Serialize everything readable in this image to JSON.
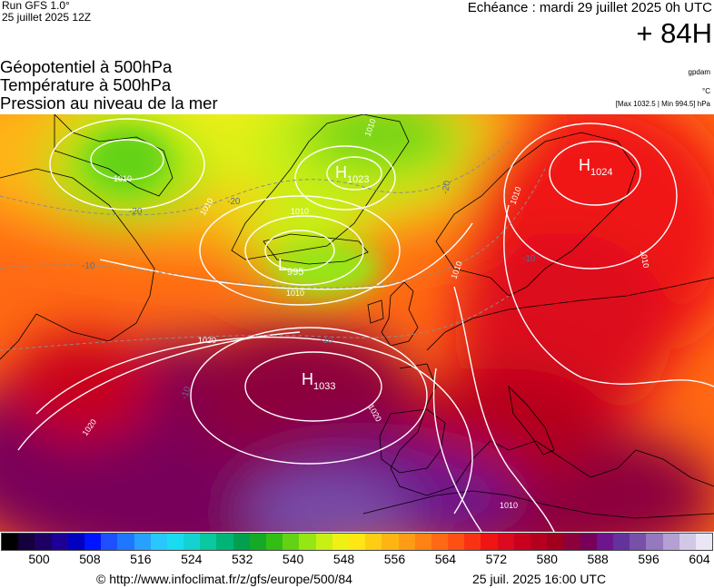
{
  "header": {
    "run_model": "Run GFS 1.0°",
    "run_date": "25 juillet 2025 12Z",
    "valid_time": "Echéance : mardi 29 juillet 2025 0h UTC",
    "lead_time": "+ 84H"
  },
  "fields": {
    "line1": "Géopotentiel à 500hPa",
    "line2": "Température à 500hPa",
    "line3": "Pression au niveau de la mer"
  },
  "units": {
    "geopotential": "gpdam",
    "temperature": "°C",
    "pressure_range": "[Max 1032.5 | Min 994.5] hPa"
  },
  "map": {
    "centers": [
      {
        "type": "H",
        "value": "1033"
      },
      {
        "type": "H",
        "value": "1024"
      },
      {
        "type": "H",
        "value": "1023"
      },
      {
        "type": "L",
        "value": "995"
      }
    ],
    "isobar_labels": [
      "1010",
      "1010",
      "1010",
      "1010",
      "1010",
      "1010",
      "1010",
      "1020",
      "1020",
      "1020",
      "1010",
      "1010"
    ],
    "temp_labels": [
      "-20",
      "-20",
      "-20",
      "-10",
      "-10",
      "-10",
      "-10"
    ]
  },
  "legend": {
    "colors": [
      "#000000",
      "#14003c",
      "#1e0064",
      "#1e0096",
      "#0000be",
      "#0014ff",
      "#1e50ff",
      "#1e78ff",
      "#28a0ff",
      "#28c8ff",
      "#19dcf0",
      "#14d2d2",
      "#0ac8a0",
      "#00b478",
      "#00a050",
      "#14aa28",
      "#32be14",
      "#64d214",
      "#96e614",
      "#c8f014",
      "#f0f014",
      "#ffe614",
      "#ffcd14",
      "#ffb414",
      "#ff9b14",
      "#ff8214",
      "#ff6914",
      "#ff5014",
      "#fa3214",
      "#f01414",
      "#dc0a1e",
      "#c8001e",
      "#b4001e",
      "#a0001e",
      "#8c003c",
      "#78005a",
      "#6e148c",
      "#64329b",
      "#7850aa",
      "#9678be",
      "#b4a0d2",
      "#d2c8e6",
      "#ebe6f5"
    ],
    "labels": [
      "500",
      "508",
      "516",
      "524",
      "532",
      "540",
      "548",
      "556",
      "564",
      "572",
      "580",
      "588",
      "596",
      "604"
    ]
  },
  "footer": {
    "url": "© http://www.infoclimat.fr/z/gfs/europe/500/84",
    "generated": "25 juil. 2025 16:00 UTC"
  }
}
